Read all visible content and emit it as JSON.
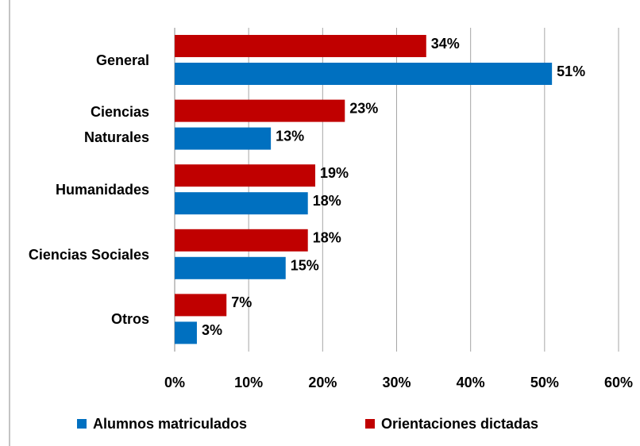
{
  "chart_data": {
    "type": "bar",
    "orientation": "horizontal",
    "categories": [
      "General",
      "Ciencias Naturales",
      "Humanidades",
      "Ciencias Sociales",
      "Otros"
    ],
    "series": [
      {
        "name": "Alumnos matriculados",
        "color": "#0070c0",
        "values": [
          51,
          13,
          18,
          15,
          3
        ],
        "value_labels": [
          "51%",
          "13%",
          "18%",
          "15%",
          "3%"
        ]
      },
      {
        "name": "Orientaciones dictadas",
        "color": "#c00000",
        "values": [
          34,
          23,
          19,
          18,
          7
        ],
        "value_labels": [
          "34%",
          "23%",
          "19%",
          "18%",
          "7%"
        ]
      }
    ],
    "xlim": [
      0,
      60
    ],
    "xticks": [
      {
        "value": 0,
        "label": "0%"
      },
      {
        "value": 10,
        "label": "10%"
      },
      {
        "value": 20,
        "label": "20%"
      },
      {
        "value": 30,
        "label": "30%"
      },
      {
        "value": 40,
        "label": "40%"
      },
      {
        "value": 50,
        "label": "50%"
      },
      {
        "value": 60,
        "label": "60%"
      }
    ],
    "grid": true,
    "legend": "bottom"
  }
}
